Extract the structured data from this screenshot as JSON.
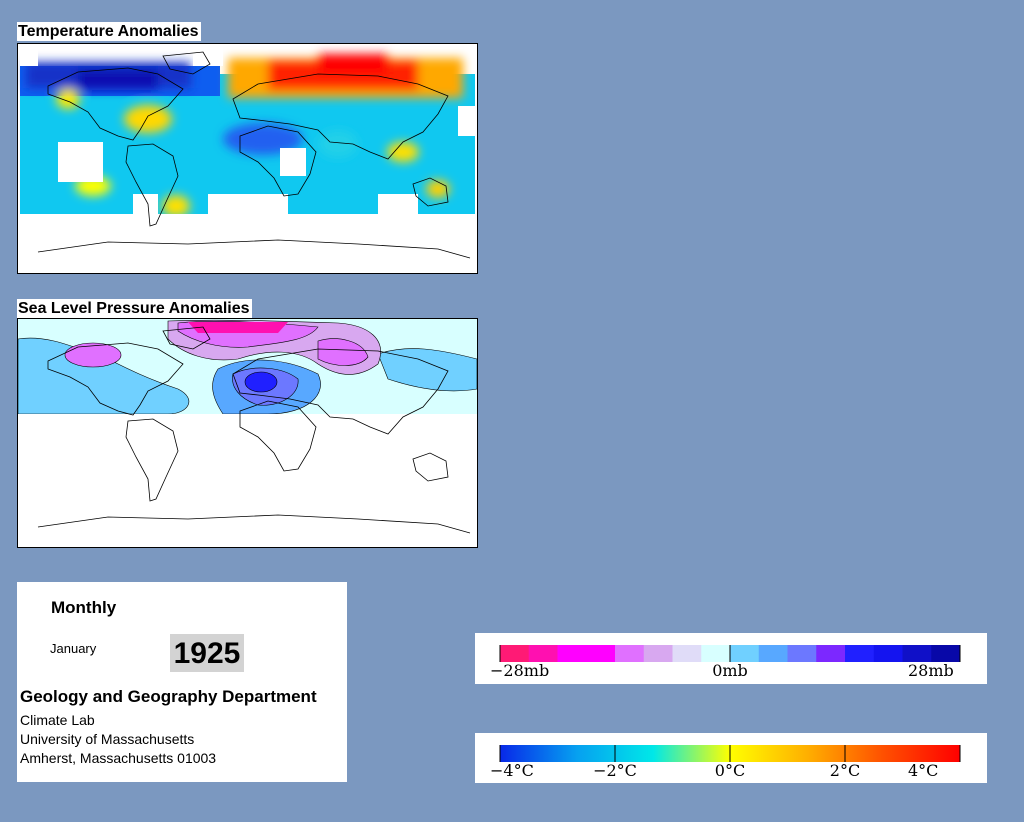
{
  "maps": {
    "temperature": {
      "title": "Temperature Anomalies"
    },
    "pressure": {
      "title": "Sea Level Pressure Anomalies"
    }
  },
  "info": {
    "period": "Monthly",
    "month": "January",
    "year": "1925",
    "department": "Geology and Geography Department",
    "lab": "Climate Lab",
    "university": "University of Massachusetts",
    "address": "Amherst, Massachusetts 01003"
  },
  "chart_data": [
    {
      "type": "colorbar",
      "name": "pressure-scale",
      "unit": "mb",
      "range": [
        -28,
        28
      ],
      "tick_labels": [
        "−28mb",
        "0mb",
        "28mb"
      ],
      "colors": [
        "#ff1a75",
        "#ff10b0",
        "#ff00ff",
        "#ff00ff",
        "#e070ff",
        "#d8a8f0",
        "#e0dcf8",
        "#d8ffff",
        "#70d0ff",
        "#58a8ff",
        "#6c78ff",
        "#7c28ff",
        "#2020ff",
        "#1414f0",
        "#1010c8",
        "#0808a8"
      ]
    },
    {
      "type": "colorbar",
      "name": "temperature-scale",
      "unit": "°C",
      "range": [
        -4,
        4
      ],
      "tick_labels": [
        "−4°C",
        "−2°C",
        "0°C",
        "2°C",
        "4°C"
      ],
      "gradient": [
        "#0828e8",
        "#06a0f0",
        "#00e8e8",
        "#ffff00",
        "#ffb000",
        "#ff5000",
        "#ff0000"
      ]
    }
  ]
}
